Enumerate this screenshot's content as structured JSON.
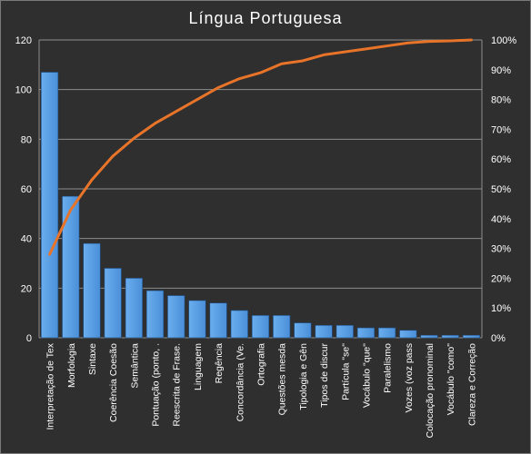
{
  "chart_data": {
    "type": "bar",
    "title": "Língua Portuguesa",
    "categories": [
      "Interpretação de Tex",
      "Morfologia",
      "Sintaxe",
      "Coerência Coesão",
      "Semântica",
      "Pontuação (ponto, .",
      "Reescrita de Frase.",
      "Linguagem",
      "Regência",
      "Concordância (Ve.",
      "Ortografia",
      "Questões mesda",
      "Tipologia e Gên",
      "Tipos de discur",
      "Partícula \"se\"",
      "Vocábulo \"que\"",
      "Paralelismo",
      "Vozes (voz pass",
      "Colocação pronominal",
      "Vocábulo \"como\"",
      "Clareza e Correção"
    ],
    "series": [
      {
        "type": "bar",
        "values": [
          107,
          57,
          38,
          28,
          24,
          19,
          17,
          15,
          14,
          11,
          9,
          9,
          6,
          5,
          5,
          4,
          4,
          3,
          1,
          1,
          1
        ],
        "color": "#4a8fd8"
      },
      {
        "type": "line",
        "axis": "right",
        "values": [
          28,
          43,
          53,
          61,
          67,
          72,
          76,
          80,
          84,
          87,
          89,
          92,
          93,
          95,
          96,
          97,
          98,
          99,
          99.5,
          99.7,
          100
        ],
        "color": "#e8742a"
      }
    ],
    "y_left": {
      "min": 0,
      "max": 120,
      "ticks": [
        "0",
        "20",
        "40",
        "60",
        "80",
        "100",
        "120"
      ]
    },
    "y_right": {
      "min": 0,
      "max": 100,
      "ticks": [
        "0%",
        "10%",
        "20%",
        "30%",
        "40%",
        "50%",
        "60%",
        "70%",
        "80%",
        "90%",
        "100%"
      ]
    },
    "grid": true,
    "legend": "none",
    "colors": {
      "background": "#2f2f2f",
      "grid": "#8c8c8c",
      "text": "#ffffff"
    }
  }
}
